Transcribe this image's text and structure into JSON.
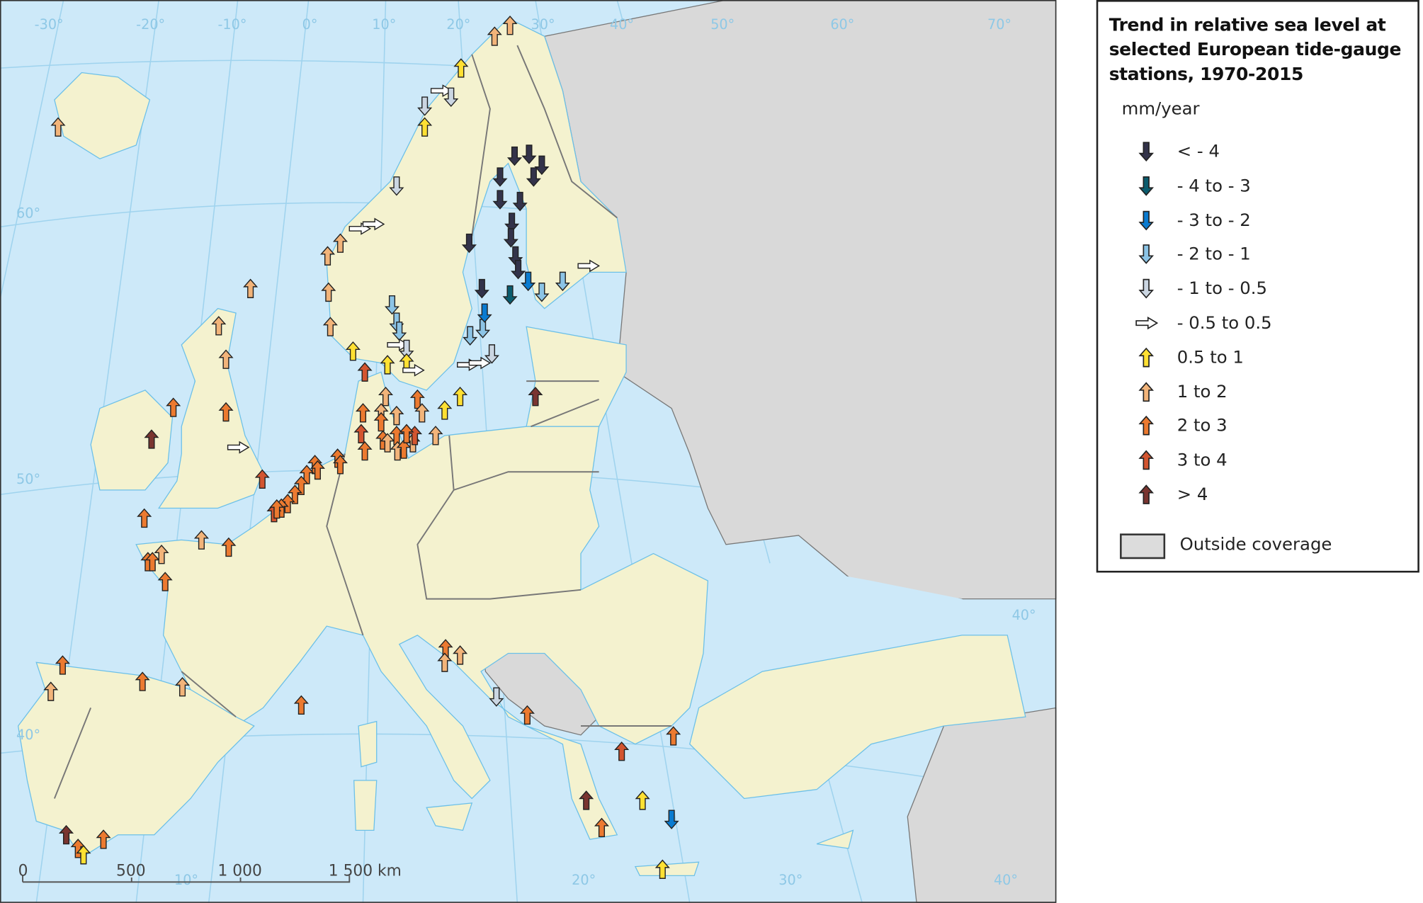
{
  "legend": {
    "title": "Trend in relative sea level at selected European tide-gauge stations, 1970-2015",
    "unit": "mm/year",
    "classes": [
      {
        "id": "d4",
        "label": "< - 4",
        "color": "#33334a",
        "direction": "down"
      },
      {
        "id": "d3",
        "label": "- 4 to - 3",
        "color": "#0a5c6e",
        "direction": "down"
      },
      {
        "id": "d2",
        "label": "- 3 to - 2",
        "color": "#0a7bd0",
        "direction": "down"
      },
      {
        "id": "d1",
        "label": "- 2 to - 1",
        "color": "#8cc4e6",
        "direction": "down"
      },
      {
        "id": "d05",
        "label": "- 1 to - 0.5",
        "color": "#cbd6e2",
        "direction": "down"
      },
      {
        "id": "z",
        "label": "- 0.5 to 0.5",
        "color": "#ffffff",
        "direction": "right"
      },
      {
        "id": "u05",
        "label": "0.5 to 1",
        "color": "#ffe033",
        "direction": "up"
      },
      {
        "id": "u1",
        "label": "1 to 2",
        "color": "#f2b47a",
        "direction": "up"
      },
      {
        "id": "u2",
        "label": "2 to 3",
        "color": "#ec7a30",
        "direction": "up"
      },
      {
        "id": "u3",
        "label": "3 to 4",
        "color": "#d35530",
        "direction": "up"
      },
      {
        "id": "u4",
        "label": "> 4",
        "color": "#7a3530",
        "direction": "up"
      }
    ],
    "outside_coverage": {
      "label": "Outside coverage",
      "color": "#dcdcdc"
    }
  },
  "map": {
    "colors": {
      "sea": "#cde9f9",
      "land": "#f4f2cf",
      "outside": "#d9d9d9",
      "border": "#777777",
      "graticule": "#9fd3ee"
    },
    "graticule_labels": {
      "top": [
        "-30°",
        "-20°",
        "-10°",
        "0°",
        "10°",
        "20°",
        "30°",
        "40°",
        "50°",
        "60°",
        "70°"
      ],
      "left": [
        "60°",
        "50°",
        "40°"
      ],
      "right": [
        "40°"
      ],
      "bottom": [
        "10°",
        "20°",
        "30°",
        "40°"
      ]
    },
    "scale_bar": {
      "ticks": [
        "0",
        "500",
        "1 000",
        "1 500 km"
      ]
    }
  },
  "stations": [
    "u1",
    "u1",
    "u1",
    "u05",
    "z",
    "d05",
    "d05",
    "u05",
    "d05",
    "z",
    "z",
    "u1",
    "u1",
    "u1",
    "u1",
    "u05",
    "u1",
    "d4",
    "d4",
    "d4",
    "d4",
    "d4",
    "d4",
    "d4",
    "d4",
    "d4",
    "d4",
    "d4",
    "d4",
    "d4",
    "d3",
    "d2",
    "d1",
    "d1",
    "z",
    "d1",
    "d1",
    "d1",
    "z",
    "d05",
    "u05",
    "u05",
    "z",
    "u3",
    "d1",
    "d1",
    "d2",
    "d05",
    "z",
    "z",
    "u1",
    "u2",
    "u1",
    "u3",
    "u2",
    "u2",
    "u1",
    "u2",
    "u1",
    "u2",
    "u1",
    "u2",
    "u1",
    "u2",
    "u1",
    "u3",
    "u2",
    "u1",
    "u05",
    "u05",
    "u4",
    "u1",
    "u1",
    "u2",
    "u2",
    "u4",
    "z",
    "u3",
    "u2",
    "u2",
    "u2",
    "u1",
    "u2",
    "u1",
    "u2",
    "u2",
    "u2",
    "u2",
    "u2",
    "u2",
    "u2",
    "u2",
    "u2",
    "u2",
    "u3",
    "u2",
    "u2",
    "u1",
    "u2",
    "u1",
    "u2",
    "u4",
    "u2",
    "u05",
    "u2",
    "u2",
    "u1",
    "u1",
    "d05",
    "u2",
    "u3",
    "u2",
    "u4",
    "u05",
    "d2",
    "u2",
    "u05"
  ]
}
